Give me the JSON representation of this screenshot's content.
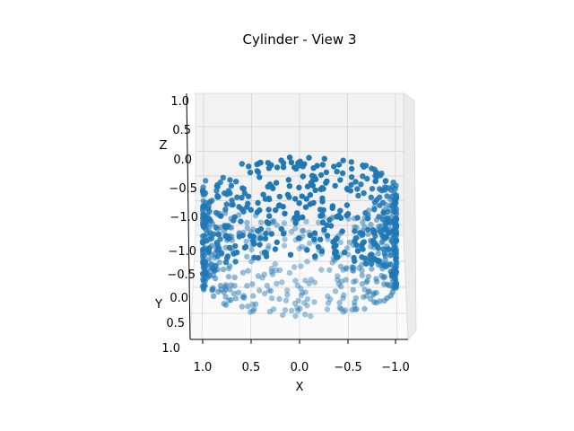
{
  "chart_data": {
    "type": "scatter",
    "title": "Cylinder - View 3",
    "xlabel": "X",
    "ylabel": "Y",
    "zlabel": "Z",
    "x_ticks": [
      "1.0",
      "0.5",
      "0.0",
      "−0.5",
      "−1.0"
    ],
    "y_ticks": [
      "−1.0",
      "−0.5",
      "0.0",
      "0.5",
      "1.0"
    ],
    "z_ticks": [
      "1.0",
      "0.5",
      "0.0",
      "−0.5",
      "−1.0"
    ],
    "xlim": [
      1.0,
      -1.0
    ],
    "ylim": [
      -1.0,
      1.0
    ],
    "zlim": [
      -1.0,
      1.0
    ],
    "grid": true,
    "marker_color": "#1f77b4",
    "point_count": 900
  }
}
